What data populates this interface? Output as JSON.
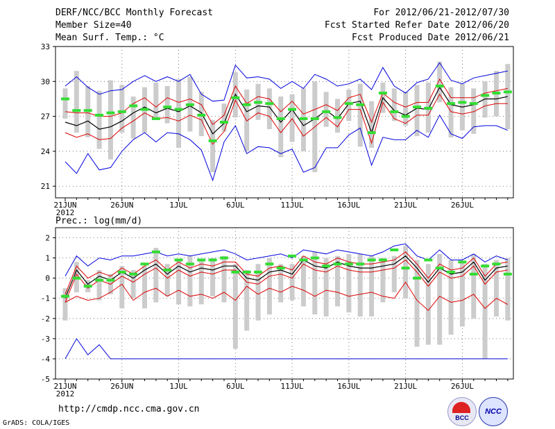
{
  "header": {
    "title": "DERF/NCC/BCC Monthly Forecast",
    "member_size": "Member Size=40",
    "variable": "Mean Surf. Temp.: °C",
    "period": "For 2012/06/21-2012/07/30",
    "started": "Fcst Started Refer Date 2012/06/20",
    "produced": "Fcst Produced Date 2012/06/21"
  },
  "footer": {
    "url": "http://cmdp.ncc.cma.gov.cn",
    "grads": "GrADS: COLA/IGES",
    "logo1": "BCC",
    "logo2": "NCC"
  },
  "colors": {
    "mean": "#000000",
    "spread": "#dd0000",
    "envelope": "#0000dd",
    "box": "#cccccc",
    "median": "#33dd33"
  },
  "chart_data": [
    {
      "type": "line",
      "title": "Mean Surf. Temp.: °C",
      "x_tick_labels": [
        "21JUN",
        "26JUN",
        "1JUL",
        "6JUL",
        "11JUL",
        "16JUL",
        "21JUL",
        "26JUL"
      ],
      "year_label": "2012",
      "x_days": 40,
      "ylim": [
        20,
        33
      ],
      "yticks": [
        21,
        24,
        27,
        30,
        33
      ],
      "series": [
        {
          "name": "mean",
          "values": [
            26.5,
            26.2,
            26.6,
            25.9,
            26.1,
            26.6,
            27.3,
            27.8,
            27.3,
            27.7,
            27.4,
            27.9,
            27.3,
            25.5,
            26.4,
            28.9,
            27.4,
            27.9,
            27.8,
            26.5,
            27.6,
            26.2,
            26.8,
            27.5,
            26.8,
            28.1,
            28.3,
            25.6,
            28.6,
            27.5,
            27.1,
            27.7,
            27.6,
            29.5,
            28.0,
            27.8,
            28.0,
            28.5,
            28.5,
            28.7
          ]
        },
        {
          "name": "upper",
          "values": [
            27.4,
            27.3,
            27.3,
            27.0,
            27.0,
            27.3,
            28.1,
            28.6,
            27.8,
            28.6,
            28.2,
            28.5,
            28.0,
            26.3,
            27.1,
            29.6,
            28.1,
            28.7,
            28.5,
            27.4,
            28.3,
            27.2,
            27.6,
            28.0,
            27.5,
            28.6,
            28.9,
            26.5,
            29.0,
            28.2,
            27.8,
            28.2,
            28.2,
            30.2,
            28.6,
            28.6,
            28.6,
            29.0,
            29.2,
            29.4
          ]
        },
        {
          "name": "lower",
          "values": [
            25.6,
            25.2,
            25.5,
            25.0,
            25.1,
            26.0,
            26.6,
            27.3,
            26.8,
            26.9,
            26.6,
            27.1,
            26.7,
            24.6,
            25.7,
            28.4,
            26.6,
            27.3,
            27.0,
            25.6,
            26.8,
            25.3,
            26.1,
            26.9,
            26.1,
            27.6,
            27.6,
            24.7,
            28.2,
            26.8,
            26.4,
            27.1,
            27.1,
            28.9,
            27.4,
            27.2,
            27.4,
            27.9,
            28.1,
            28.1
          ]
        },
        {
          "name": "max",
          "values": [
            29.6,
            30.4,
            29.5,
            28.9,
            29.2,
            29.3,
            30.0,
            30.5,
            30.0,
            30.4,
            30.0,
            30.6,
            28.9,
            28.3,
            28.4,
            31.4,
            30.3,
            30.4,
            30.2,
            29.4,
            30.0,
            29.4,
            30.6,
            30.2,
            29.6,
            29.8,
            30.2,
            29.3,
            31.2,
            29.6,
            29.0,
            29.9,
            30.2,
            31.6,
            30.1,
            29.8,
            30.3,
            30.5,
            30.7,
            30.9
          ]
        },
        {
          "name": "min",
          "values": [
            23.1,
            22.1,
            23.8,
            22.4,
            22.6,
            24.0,
            25.0,
            25.6,
            24.8,
            25.6,
            25.5,
            25.0,
            24.1,
            21.5,
            24.8,
            26.2,
            23.8,
            24.4,
            24.3,
            23.8,
            24.2,
            22.2,
            22.6,
            24.3,
            24.3,
            25.4,
            26.0,
            22.8,
            25.2,
            25.0,
            25.0,
            25.8,
            25.2,
            27.1,
            25.5,
            25.1,
            26.1,
            26.2,
            26.2,
            25.8
          ]
        },
        {
          "name": "box_high",
          "values": [
            29.4,
            30.9,
            29.6,
            29.2,
            30.1,
            29.7,
            28.7,
            29.5,
            29.9,
            29.6,
            30.2,
            30.4,
            29.1,
            26.7,
            28.1,
            30.8,
            29.3,
            29.8,
            29.4,
            28.7,
            28.9,
            29.4,
            30.0,
            29.1,
            28.5,
            29.3,
            29.8,
            28.3,
            29.9,
            29.4,
            29.1,
            29.7,
            29.9,
            31.7,
            29.5,
            29.8,
            29.4,
            30.0,
            30.9,
            31.5
          ]
        },
        {
          "name": "box_low",
          "values": [
            26.8,
            25.6,
            25.2,
            24.2,
            23.3,
            25.6,
            25.1,
            25.6,
            26.9,
            26.4,
            24.3,
            25.7,
            25.3,
            22.2,
            25.7,
            26.9,
            24.0,
            26.7,
            25.9,
            23.5,
            24.8,
            24.0,
            22.2,
            26.1,
            25.6,
            26.6,
            24.4,
            24.3,
            27.3,
            26.6,
            26.2,
            25.3,
            25.6,
            28.2,
            25.2,
            25.8,
            25.5,
            26.9,
            27.0,
            25.9
          ]
        },
        {
          "name": "median",
          "values": [
            28.5,
            27.5,
            27.5,
            27.1,
            27.3,
            27.4,
            27.9,
            27.6,
            26.8,
            27.8,
            27.6,
            28.0,
            27.1,
            24.9,
            26.5,
            28.6,
            28.0,
            28.2,
            28.1,
            26.8,
            27.6,
            26.8,
            26.8,
            27.4,
            26.9,
            28.1,
            28.0,
            25.6,
            29.0,
            27.4,
            27.0,
            27.8,
            27.7,
            29.6,
            28.1,
            28.2,
            28.1,
            28.8,
            29.0,
            29.1
          ]
        }
      ]
    },
    {
      "type": "line",
      "title": "Prec.: log(mm/d)",
      "x_tick_labels": [
        "21JUN",
        "26JUN",
        "1JUL",
        "6JUL",
        "11JUL",
        "16JUL",
        "21JUL",
        "26JUL"
      ],
      "year_label": "2012",
      "x_days": 40,
      "ylim": [
        -5,
        2.5
      ],
      "yticks": [
        -5,
        -4,
        -3,
        -2,
        -1,
        0,
        1,
        2
      ],
      "series": [
        {
          "name": "mean",
          "values": [
            -1.0,
            0.4,
            -0.3,
            0.1,
            -0.1,
            0.3,
            0.0,
            0.4,
            0.7,
            0.2,
            0.6,
            0.3,
            0.5,
            0.4,
            0.6,
            0.6,
            0.0,
            -0.1,
            0.3,
            0.4,
            0.2,
            0.9,
            0.6,
            0.5,
            0.8,
            0.6,
            0.5,
            0.5,
            0.6,
            0.7,
            1.1,
            0.5,
            -0.2,
            0.5,
            0.2,
            0.3,
            0.8,
            -0.1,
            0.5,
            0.6
          ]
        },
        {
          "name": "upper",
          "values": [
            -0.8,
            0.6,
            0.0,
            0.3,
            0.1,
            0.5,
            0.2,
            0.6,
            0.9,
            0.4,
            0.8,
            0.5,
            0.7,
            0.6,
            0.8,
            0.8,
            0.2,
            0.1,
            0.5,
            0.6,
            0.4,
            1.1,
            0.8,
            0.7,
            1.0,
            0.8,
            0.7,
            0.7,
            0.8,
            0.9,
            1.3,
            0.7,
            0.0,
            0.7,
            0.4,
            0.5,
            1.0,
            0.1,
            0.7,
            0.8
          ]
        },
        {
          "name": "lower",
          "values": [
            -1.2,
            0.2,
            -0.5,
            -0.1,
            -0.3,
            0.1,
            -0.2,
            0.2,
            0.5,
            0.0,
            0.4,
            0.1,
            0.3,
            0.2,
            0.4,
            0.4,
            -0.2,
            -0.3,
            0.1,
            0.2,
            0.0,
            0.7,
            0.4,
            0.3,
            0.6,
            0.4,
            0.3,
            0.3,
            0.4,
            0.5,
            0.9,
            0.3,
            -0.4,
            0.3,
            0.0,
            0.1,
            0.6,
            -0.3,
            0.3,
            0.4
          ]
        },
        {
          "name": "upper_red",
          "values": [
            -1.2,
            -0.9,
            -1.1,
            -1.0,
            -0.7,
            -0.3,
            -1.1,
            -0.7,
            -0.5,
            -0.9,
            -0.6,
            -0.9,
            -0.8,
            -1.0,
            -0.7,
            -1.1,
            -0.4,
            -0.8,
            -0.5,
            -0.7,
            -0.4,
            -0.6,
            -0.9,
            -0.6,
            -0.7,
            -0.9,
            -0.8,
            -0.7,
            -0.9,
            -1.0,
            -0.2,
            -1.1,
            -1.6,
            -0.9,
            -1.2,
            -1.1,
            -0.8,
            -1.5,
            -1.0,
            -1.3
          ]
        },
        {
          "name": "max",
          "values": [
            0.1,
            1.1,
            0.6,
            1.0,
            0.9,
            1.1,
            1.1,
            1.2,
            1.3,
            1.1,
            1.2,
            1.1,
            1.2,
            1.3,
            1.4,
            1.2,
            0.9,
            1.0,
            1.1,
            1.2,
            1.0,
            1.4,
            1.3,
            1.2,
            1.4,
            1.3,
            1.2,
            1.1,
            1.3,
            1.6,
            1.7,
            1.1,
            0.9,
            1.4,
            0.9,
            0.9,
            1.2,
            0.8,
            1.1,
            0.9
          ]
        },
        {
          "name": "min",
          "values": [
            -4.0,
            -3.0,
            -3.8,
            -3.3,
            -4.0,
            -4.0,
            -4.0,
            -4.0,
            -4.0,
            -4.0,
            -4.0,
            -4.0,
            -4.0,
            -4.0,
            -4.0,
            -4.0,
            -4.0,
            -4.0,
            -4.0,
            -4.0,
            -4.0,
            -4.0,
            -4.0,
            -4.0,
            -4.0,
            -4.0,
            -4.0,
            -4.0,
            -4.0,
            -4.0,
            -4.0,
            -4.0,
            -4.0,
            -4.0,
            -4.0,
            -4.0,
            -4.0,
            -4.0,
            -4.0,
            -4.0
          ]
        },
        {
          "name": "box_high",
          "values": [
            -0.5,
            0.8,
            -0.1,
            0.4,
            0.2,
            0.6,
            0.4,
            0.6,
            1.5,
            0.7,
            0.9,
            1.1,
            0.9,
            1.0,
            1.1,
            0.7,
            0.4,
            0.7,
            1.0,
            0.7,
            0.7,
            1.1,
            1.3,
            1.0,
            1.1,
            1.2,
            1.2,
            1.1,
            1.0,
            1.1,
            1.6,
            0.9,
            0.7,
            1.2,
            0.9,
            0.8,
            1.2,
            0.7,
            0.9,
            1.0
          ]
        },
        {
          "name": "box_low",
          "values": [
            -2.1,
            -0.7,
            -0.7,
            -1.1,
            -0.8,
            -1.5,
            -1.0,
            -1.5,
            -1.2,
            -0.9,
            -1.3,
            -1.4,
            -1.3,
            -0.9,
            -1.2,
            -3.5,
            -2.6,
            -2.1,
            -1.8,
            -1.2,
            -1.1,
            -1.4,
            -1.8,
            -1.9,
            -1.4,
            -1.7,
            -1.9,
            -1.9,
            -1.2,
            -0.7,
            -1.0,
            -3.4,
            -3.3,
            -3.3,
            -2.8,
            -2.4,
            -2.0,
            -4.0,
            -1.9,
            -2.1
          ]
        },
        {
          "name": "median",
          "values": [
            -0.9,
            0.0,
            -0.4,
            -0.1,
            -0.1,
            0.3,
            0.2,
            0.7,
            1.3,
            0.4,
            0.9,
            0.7,
            0.9,
            0.9,
            1.0,
            0.3,
            0.3,
            0.3,
            0.7,
            0.5,
            1.1,
            0.9,
            1.0,
            0.6,
            0.7,
            0.7,
            0.7,
            0.9,
            0.9,
            1.4,
            0.5,
            0.0,
            0.9,
            0.5,
            0.3,
            0.8,
            0.2,
            0.6,
            0.7,
            0.2
          ]
        }
      ]
    }
  ]
}
